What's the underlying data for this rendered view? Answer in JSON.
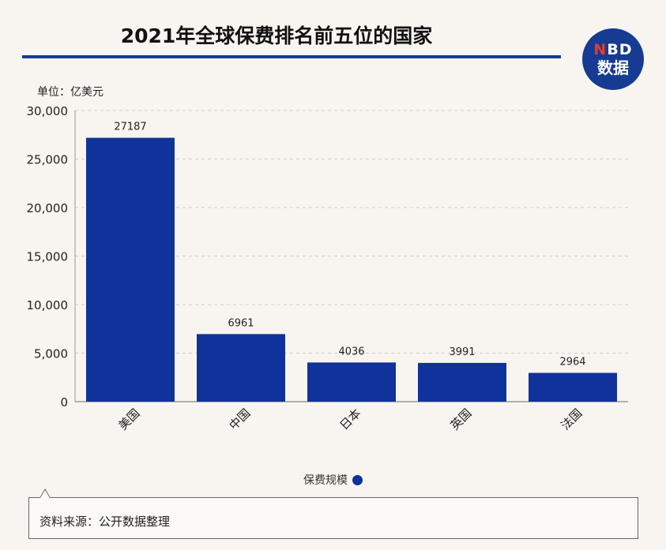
{
  "header": {
    "title": "2021年全球保费排名前五位的国家",
    "logo_line1_n": "N",
    "logo_line1_rest": "BD",
    "logo_line2": "数据"
  },
  "unit_label": "单位：亿美元",
  "legend": {
    "label": "保费规模"
  },
  "source": {
    "text": "资料来源：公开数据整理"
  },
  "colors": {
    "bar": "#0f339b",
    "accent": "#163b92",
    "background": "#f8f5f0"
  },
  "chart_data": {
    "type": "bar",
    "categories": [
      "美国",
      "中国",
      "日本",
      "英国",
      "法国"
    ],
    "series": [
      {
        "name": "保费规模",
        "values": [
          27187,
          6961,
          4036,
          3991,
          2964
        ]
      }
    ],
    "data_labels": [
      "27187",
      "6961",
      "4036",
      "3991",
      "2964"
    ],
    "ylim": [
      0,
      30000
    ],
    "yticks": [
      0,
      5000,
      10000,
      15000,
      20000,
      25000,
      30000
    ],
    "ytick_labels": [
      "0",
      "5,000",
      "10,000",
      "15,000",
      "20,000",
      "25,000",
      "30,000"
    ],
    "grid": true,
    "legend_position": "bottom"
  }
}
